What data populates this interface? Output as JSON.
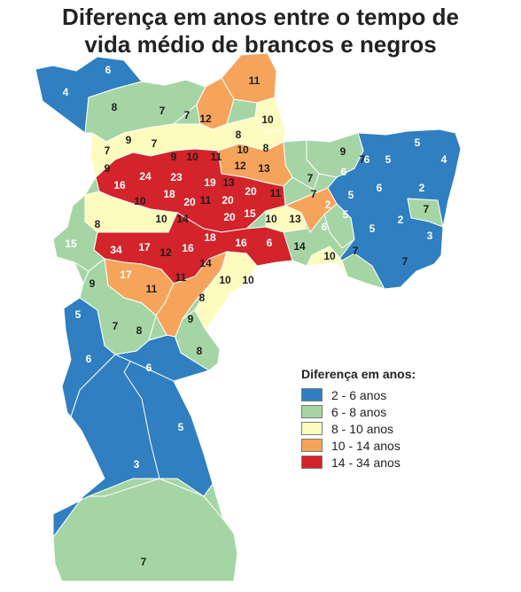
{
  "title": {
    "line1": "Diferença em anos entre o tempo de",
    "line2": "vida médio de brancos e negros"
  },
  "colors": {
    "blue": "#2f7fc1",
    "green": "#a6d5a5",
    "yellow": "#fdfcbe",
    "orange": "#f6a45c",
    "red": "#d2242a",
    "border": "#ffffff",
    "text_on_light": "#1e1e1e",
    "text_on_dark": "#ffffff"
  },
  "legend": {
    "title": "Diferença em anos:",
    "items": [
      {
        "label": "2 - 6 anos",
        "color": "#2f7fc1"
      },
      {
        "label": "6 - 8 anos",
        "color": "#a6d5a5"
      },
      {
        "label": "8 - 10 anos",
        "color": "#fdfcbe"
      },
      {
        "label": "10 - 14 anos",
        "color": "#f6a45c"
      },
      {
        "label": "14 - 34 anos",
        "color": "#d2242a"
      }
    ]
  },
  "map_values": [
    "6",
    "4",
    "8",
    "7",
    "7",
    "11",
    "12",
    "10",
    "8",
    "8",
    "7",
    "9",
    "7",
    "9",
    "10",
    "11",
    "10",
    "12",
    "13",
    "9",
    "16",
    "24",
    "23",
    "19",
    "13",
    "20",
    "11",
    "18",
    "20",
    "11",
    "20",
    "10",
    "10",
    "14",
    "20",
    "15",
    "10",
    "13",
    "8",
    "15",
    "34",
    "17",
    "12",
    "16",
    "18",
    "16",
    "6",
    "14",
    "17",
    "11",
    "14",
    "11",
    "10",
    "10",
    "8",
    "9",
    "9",
    "7",
    "8",
    "5",
    "6",
    "6",
    "5",
    "3",
    "7",
    "8",
    "7",
    "9",
    "7",
    "7",
    "5",
    "5",
    "6",
    "6",
    "4",
    "5",
    "6",
    "2",
    "2",
    "7",
    "5",
    "2",
    "6",
    "5",
    "3",
    "7",
    "10",
    "7"
  ]
}
